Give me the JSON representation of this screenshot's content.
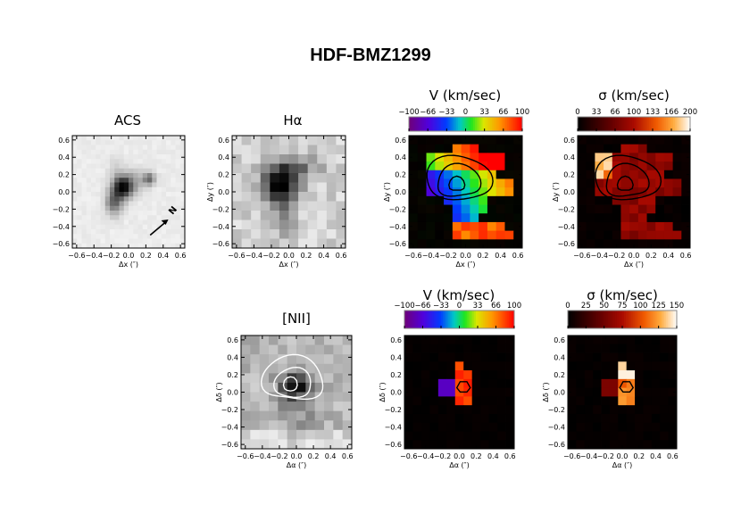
{
  "title": "HDF-BMZ1299",
  "colors": {
    "axis": "#000000",
    "contour_dark": "#000000",
    "contour_light": "#ffffff",
    "background": "#ffffff"
  },
  "chart_data": [
    {
      "id": "acs",
      "type": "heatmap",
      "title": "ACS",
      "colormap": "gray",
      "xlabel": "Δx (″)",
      "ylabel": "",
      "xlim": [
        -0.65,
        0.65
      ],
      "ylim": [
        -0.65,
        0.65
      ],
      "xticks": [
        "−0.6",
        "−0.4",
        "−0.2",
        "0.0",
        "0.2",
        "0.4",
        "0.6"
      ],
      "yticks": [
        "0.6",
        "0.4",
        "0.2",
        "0.0",
        "−0.2",
        "−0.4",
        "−0.6"
      ],
      "annotation": "N"
    },
    {
      "id": "ha",
      "type": "heatmap",
      "title": "Hα",
      "colormap": "gray",
      "xlabel": "Δx (″)",
      "ylabel": "Δy (″)",
      "xlim": [
        -0.65,
        0.65
      ],
      "ylim": [
        -0.65,
        0.65
      ],
      "xticks": [
        "−0.6",
        "−0.4",
        "−0.2",
        "0.0",
        "0.2",
        "0.4",
        "0.6"
      ],
      "yticks": [
        "0.6",
        "0.4",
        "0.2",
        "0.0",
        "−0.2",
        "−0.4",
        "−0.6"
      ]
    },
    {
      "id": "v1",
      "type": "heatmap",
      "title": "V (km/sec)",
      "colormap": "rainbow",
      "xlabel": "Δx (″)",
      "ylabel": "Δy (″)",
      "xlim": [
        -0.65,
        0.65
      ],
      "ylim": [
        -0.65,
        0.65
      ],
      "colorbar_range": [
        -100,
        100
      ],
      "colorbar_ticks": [
        "−100",
        "−66",
        "−33",
        "0",
        "33",
        "66",
        "100"
      ],
      "xticks": [
        "−0.6",
        "−0.4",
        "−0.2",
        "0.0",
        "0.2",
        "0.4",
        "0.6"
      ],
      "yticks": [
        "0.6",
        "0.4",
        "0.2",
        "0.0",
        "−0.2",
        "−0.4",
        "−0.6"
      ]
    },
    {
      "id": "s1",
      "type": "heatmap",
      "title": "σ (km/sec)",
      "colormap": "heat",
      "xlabel": "Δx (″)",
      "ylabel": "Δy (″)",
      "xlim": [
        -0.65,
        0.65
      ],
      "ylim": [
        -0.65,
        0.65
      ],
      "colorbar_range": [
        0,
        200
      ],
      "colorbar_ticks": [
        "0",
        "33",
        "66",
        "100",
        "133",
        "166",
        "200"
      ],
      "xticks": [
        "−0.6",
        "−0.4",
        "−0.2",
        "0.0",
        "0.2",
        "0.4",
        "0.6"
      ],
      "yticks": [
        "0.6",
        "0.4",
        "0.2",
        "0.0",
        "−0.2",
        "−0.4",
        "−0.6"
      ]
    },
    {
      "id": "nii",
      "type": "heatmap",
      "title": "[NII]",
      "colormap": "gray",
      "xlabel": "Δα (″)",
      "ylabel": "Δδ (″)",
      "xlim": [
        -0.65,
        0.65
      ],
      "ylim": [
        -0.65,
        0.65
      ],
      "xticks": [
        "−0.6",
        "−0.4",
        "−0.2",
        "0.0",
        "0.2",
        "0.4",
        "0.6"
      ],
      "yticks": [
        "0.6",
        "0.4",
        "0.2",
        "0.0",
        "−0.2",
        "−0.4",
        "−0.6"
      ]
    },
    {
      "id": "v2",
      "type": "heatmap",
      "title": "V (km/sec)",
      "colormap": "rainbow",
      "xlabel": "Δα (″)",
      "ylabel": "Δδ (″)",
      "xlim": [
        -0.65,
        0.65
      ],
      "ylim": [
        -0.65,
        0.65
      ],
      "colorbar_range": [
        -100,
        100
      ],
      "colorbar_ticks": [
        "−100",
        "−66",
        "−33",
        "0",
        "33",
        "66",
        "100"
      ],
      "xticks": [
        "−0.6",
        "−0.4",
        "−0.2",
        "0.0",
        "0.2",
        "0.4",
        "0.6"
      ],
      "yticks": [
        "0.6",
        "0.4",
        "0.2",
        "0.0",
        "−0.2",
        "−0.4",
        "−0.6"
      ]
    },
    {
      "id": "s2",
      "type": "heatmap",
      "title": "σ (km/sec)",
      "colormap": "heat",
      "xlabel": "Δα (″)",
      "ylabel": "Δδ (″)",
      "xlim": [
        -0.65,
        0.65
      ],
      "ylim": [
        -0.65,
        0.65
      ],
      "colorbar_range": [
        0,
        150
      ],
      "colorbar_ticks": [
        "0",
        "25",
        "50",
        "75",
        "100",
        "125",
        "150"
      ],
      "xticks": [
        "−0.6",
        "−0.4",
        "−0.2",
        "0.0",
        "0.2",
        "0.4",
        "0.6"
      ],
      "yticks": [
        "0.6",
        "0.4",
        "0.2",
        "0.0",
        "−0.2",
        "−0.4",
        "−0.6"
      ]
    }
  ]
}
